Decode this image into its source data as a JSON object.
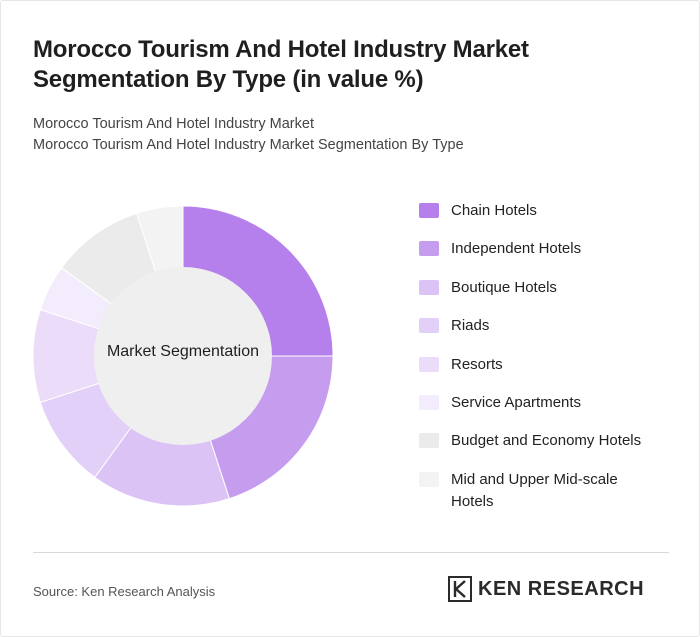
{
  "header": {
    "title": "Morocco Tourism And Hotel Industry Market Segmentation By Type (in value %)",
    "subtitle_line1": "Morocco Tourism And Hotel Industry Market",
    "subtitle_line2": "Morocco Tourism And Hotel Industry Market Segmentation By Type"
  },
  "chart_data": {
    "type": "pie",
    "center_label": "Market Segmentation",
    "categories": [
      "Chain Hotels",
      "Independent Hotels",
      "Boutique Hotels",
      "Riads",
      "Resorts",
      "Service Apartments",
      "Budget and Economy Hotels",
      "Mid and Upper Mid-scale Hotels"
    ],
    "values": [
      25,
      20,
      15,
      10,
      10,
      5,
      10,
      5
    ],
    "colors": [
      "#b57fec",
      "#c69cef",
      "#dbc3f6",
      "#e3d0f8",
      "#ebdcfa",
      "#f3ecfc",
      "#ebebeb",
      "#f3f3f3"
    ],
    "legend_position": "right"
  },
  "footer": {
    "source": "Source: Ken Research Analysis",
    "logo_text": "KEN RESEARCH",
    "logo_icon": "ken-research-k-icon"
  }
}
